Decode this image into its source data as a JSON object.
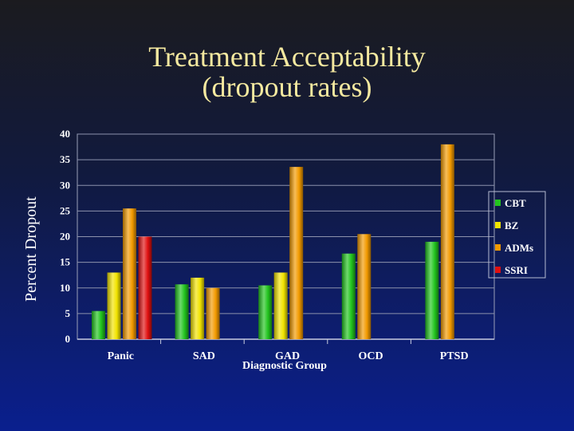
{
  "slide": {
    "title_line1": "Treatment Acceptability",
    "title_line2": "(dropout rates)",
    "ylabel": "Percent Dropout"
  },
  "chart_data": {
    "type": "bar",
    "categories": [
      "Panic",
      "SAD",
      "GAD",
      "OCD",
      "PTSD"
    ],
    "series": [
      {
        "name": "CBT",
        "color": "#22c41e",
        "values": [
          5.5,
          10.7,
          10.5,
          16.7,
          19
        ]
      },
      {
        "name": "BZ",
        "color": "#f2e400",
        "values": [
          13,
          12,
          13,
          null,
          null
        ]
      },
      {
        "name": "ADMs",
        "color": "#f29a00",
        "values": [
          25.5,
          10,
          33.6,
          20.5,
          38
        ]
      },
      {
        "name": "SSRI",
        "color": "#e01010",
        "values": [
          20,
          null,
          null,
          null,
          null
        ]
      }
    ],
    "xlabel": "Diagnostic Group",
    "ylabel": "Percent Dropout",
    "ylim": [
      0,
      40
    ],
    "yticks": [
      0,
      5,
      10,
      15,
      20,
      25,
      30,
      35,
      40
    ],
    "grid": true,
    "legend_position": "right"
  }
}
